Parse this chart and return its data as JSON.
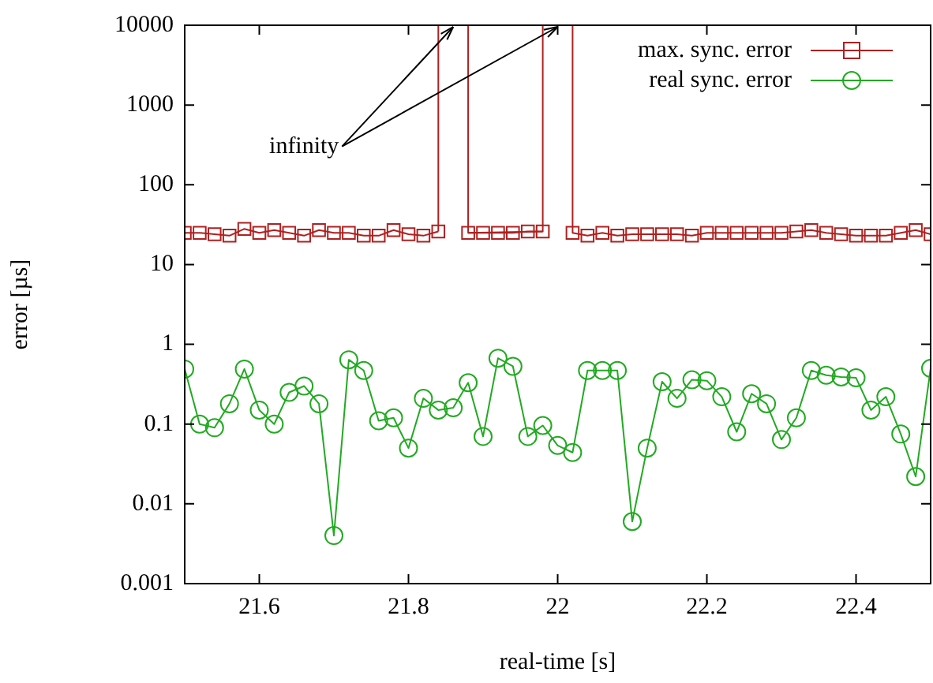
{
  "chart_data": {
    "type": "line",
    "xlabel": "real-time [s]",
    "ylabel": "error [µs]",
    "log": "y",
    "grid": false,
    "legend": "top right",
    "xlim": [
      21.5,
      22.5
    ],
    "xticks": [
      21.6,
      21.8,
      22,
      22.2,
      22.4
    ],
    "ylim": [
      0.001,
      10000
    ],
    "yticks": [
      0.001,
      0.01,
      0.1,
      1,
      10,
      100,
      1000,
      10000
    ],
    "annotations": [
      "infinity"
    ],
    "x": [
      21.5,
      21.52,
      21.54,
      21.56,
      21.58,
      21.6,
      21.62,
      21.64,
      21.66,
      21.68,
      21.7,
      21.72,
      21.74,
      21.76,
      21.78,
      21.8,
      21.82,
      21.84,
      21.86,
      21.88,
      21.9,
      21.92,
      21.94,
      21.96,
      21.98,
      22.0,
      22.02,
      22.04,
      22.06,
      22.08,
      22.1,
      22.12,
      22.14,
      22.16,
      22.18,
      22.2,
      22.22,
      22.24,
      22.26,
      22.28,
      22.3,
      22.32,
      22.34,
      22.36,
      22.38,
      22.4,
      22.42,
      22.44,
      22.46,
      22.48,
      22.5
    ],
    "series": [
      {
        "name": "max. sync. error",
        "color": "#b02020",
        "marker": "square",
        "values": [
          25,
          25,
          24,
          23,
          28,
          25,
          27,
          25,
          23,
          27,
          25,
          25,
          23,
          23,
          27,
          24,
          23,
          26,
          null,
          25,
          25,
          25,
          25,
          26,
          26,
          null,
          25,
          23,
          25,
          23,
          24,
          24,
          24,
          24,
          23,
          25,
          25,
          25,
          25,
          25,
          25,
          26,
          27,
          25,
          24,
          23,
          23,
          23,
          25,
          27,
          24
        ]
      },
      {
        "name": "real sync. error",
        "color": "#22aa22",
        "marker": "circle",
        "values": [
          0.49,
          0.1,
          0.09,
          0.18,
          0.49,
          0.15,
          0.1,
          0.25,
          0.3,
          0.18,
          0.004,
          0.64,
          0.47,
          0.11,
          0.12,
          0.05,
          0.21,
          0.15,
          0.16,
          0.33,
          0.07,
          0.67,
          0.53,
          0.07,
          0.096,
          0.054,
          0.044,
          0.47,
          0.47,
          0.47,
          0.006,
          0.05,
          0.34,
          0.21,
          0.36,
          0.35,
          0.22,
          0.08,
          0.24,
          0.18,
          0.064,
          0.12,
          0.47,
          0.41,
          0.39,
          0.38,
          0.15,
          0.22,
          0.075,
          0.022,
          0.5
        ]
      },
      {
        "color": "#b02020",
        "marker": "none",
        "x": [
          21.84,
          21.84,
          21.86,
          21.88,
          21.88,
          21.98,
          21.98,
          22.0,
          22.02,
          22.02
        ],
        "values": [
          26,
          10000,
          null,
          10000,
          25,
          26,
          10000,
          null,
          10000,
          25
        ]
      }
    ]
  }
}
